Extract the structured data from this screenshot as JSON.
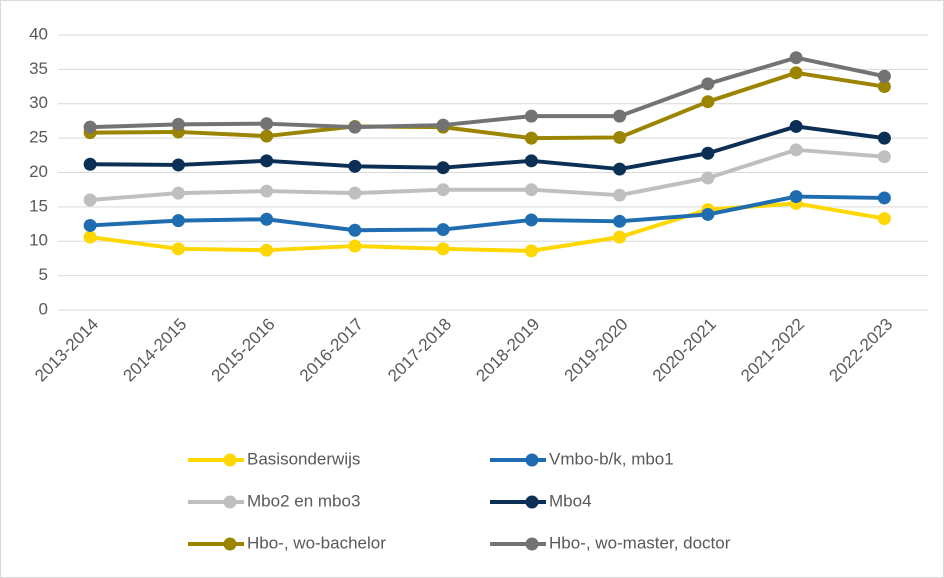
{
  "chart_data": {
    "type": "line",
    "categories": [
      "2013-2014",
      "2014-2015",
      "2015-2016",
      "2016-2017",
      "2017-2018",
      "2018-2019",
      "2019-2020",
      "2020-2021",
      "2021-2022",
      "2022-2023"
    ],
    "series": [
      {
        "name": "Basisonderwijs",
        "color": "#ffd700",
        "values": [
          10.6,
          8.9,
          8.7,
          9.3,
          8.9,
          8.6,
          10.6,
          14.6,
          15.5,
          13.3
        ]
      },
      {
        "name": "Vmbo-b/k, mbo1",
        "color": "#1f6db0",
        "values": [
          12.3,
          13.0,
          13.2,
          11.6,
          11.7,
          13.1,
          12.9,
          13.9,
          16.5,
          16.3
        ]
      },
      {
        "name": "Mbo2 en mbo3",
        "color": "#bfbfbf",
        "values": [
          16.0,
          17.0,
          17.3,
          17.0,
          17.5,
          17.5,
          16.7,
          19.2,
          23.3,
          22.3
        ]
      },
      {
        "name": "Mbo4",
        "color": "#0b2f55",
        "values": [
          21.2,
          21.1,
          21.7,
          20.9,
          20.7,
          21.7,
          20.5,
          22.8,
          26.7,
          25.0
        ]
      },
      {
        "name": "Hbo-, wo-bachelor",
        "color": "#9b8400",
        "values": [
          25.8,
          25.9,
          25.3,
          26.7,
          26.6,
          25.0,
          25.1,
          30.3,
          34.5,
          32.5
        ]
      },
      {
        "name": "Hbo-, wo-master, doctor",
        "color": "#737373",
        "values": [
          26.6,
          27.0,
          27.1,
          26.6,
          26.9,
          28.2,
          28.2,
          32.9,
          36.7,
          34.0
        ]
      }
    ],
    "ylim": [
      0,
      40
    ],
    "yticks": [
      0,
      5,
      10,
      15,
      20,
      25,
      30,
      35,
      40
    ],
    "grid": true
  }
}
